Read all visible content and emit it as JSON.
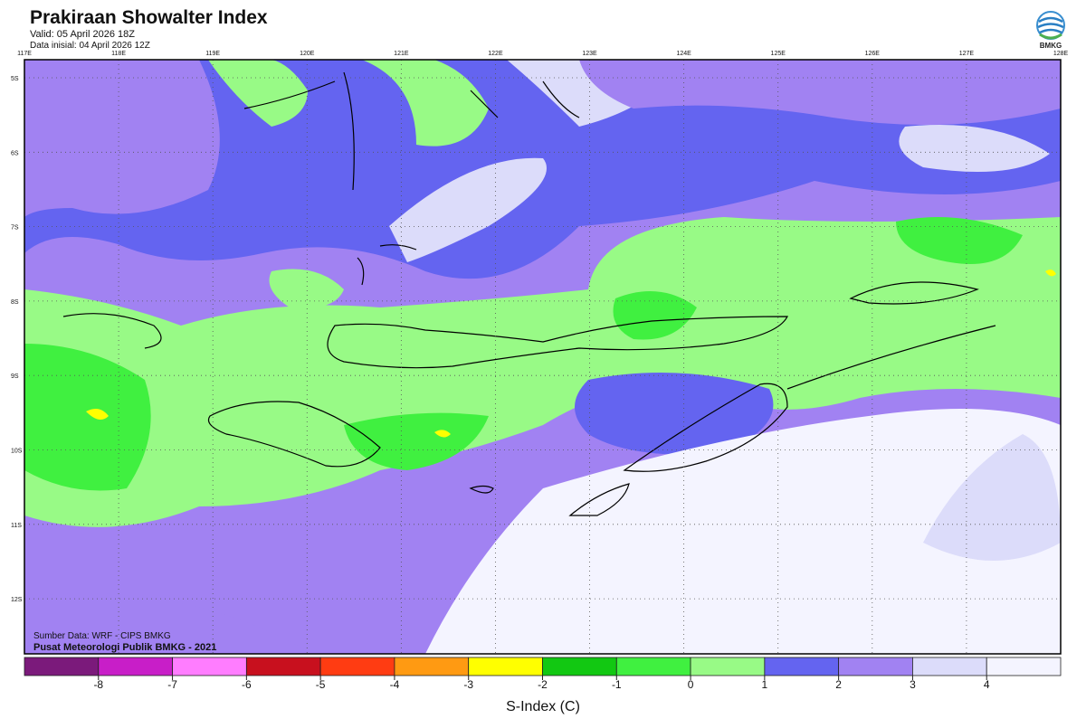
{
  "header": {
    "title": "Prakiraan Showalter Index",
    "valid": "Valid: 05 April 2026 18Z",
    "initial": "Data inisial: 04 April 2026 12Z",
    "logo": "BMKG"
  },
  "map": {
    "longitudes": [
      "117E",
      "118E",
      "119E",
      "120E",
      "121E",
      "122E",
      "123E",
      "124E",
      "125E",
      "126E",
      "127E",
      "128E"
    ],
    "latitudes": [
      "5S",
      "6S",
      "7S",
      "8S",
      "9S",
      "10S",
      "11S",
      "12S"
    ],
    "source": "Sumber Data: WRF - CIPS BMKG",
    "producer": "Pusat Meteorologi Publik BMKG - 2021"
  },
  "legend": {
    "title": "S-Index (C)",
    "labels": [
      -8,
      -7,
      -6,
      -5,
      -4,
      -3,
      -2,
      -1,
      0,
      1,
      2,
      3,
      4
    ],
    "colors": [
      "#7b1a7b",
      "#c81ec8",
      "#ff7dff",
      "#c8101e",
      "#ff3c12",
      "#ff9a12",
      "#ffff00",
      "#12c812",
      "#40f040",
      "#98fa86",
      "#6464f0",
      "#a182f2",
      "#dcdcfa",
      "#f4f4ff"
    ]
  }
}
